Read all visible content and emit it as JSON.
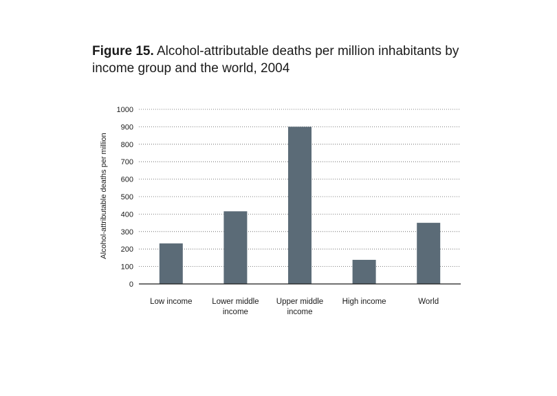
{
  "figure": {
    "number": "Figure 15.",
    "title": "Alcohol-attributable deaths per million inhabitants by income group and the world, 2004"
  },
  "chart_data": {
    "type": "bar",
    "title": "Alcohol-attributable deaths per million inhabitants by income group and the world, 2004",
    "xlabel": "",
    "ylabel": "Alcohol-attributable deaths per million",
    "categories": [
      "Low income",
      "Lower middle income",
      "Upper middle income",
      "High income",
      "World"
    ],
    "category_lines": [
      [
        "Low income"
      ],
      [
        "Lower middle",
        "income"
      ],
      [
        "Upper middle",
        "income"
      ],
      [
        "High income"
      ],
      [
        "World"
      ]
    ],
    "values": [
      232,
      416,
      900,
      138,
      350
    ],
    "ylim": [
      0,
      1000
    ],
    "yticks": [
      0,
      100,
      200,
      300,
      400,
      500,
      600,
      700,
      800,
      900,
      1000
    ],
    "grid": true,
    "grid_style": "dotted",
    "bar_color": "#5b6b77",
    "legend": "none"
  }
}
